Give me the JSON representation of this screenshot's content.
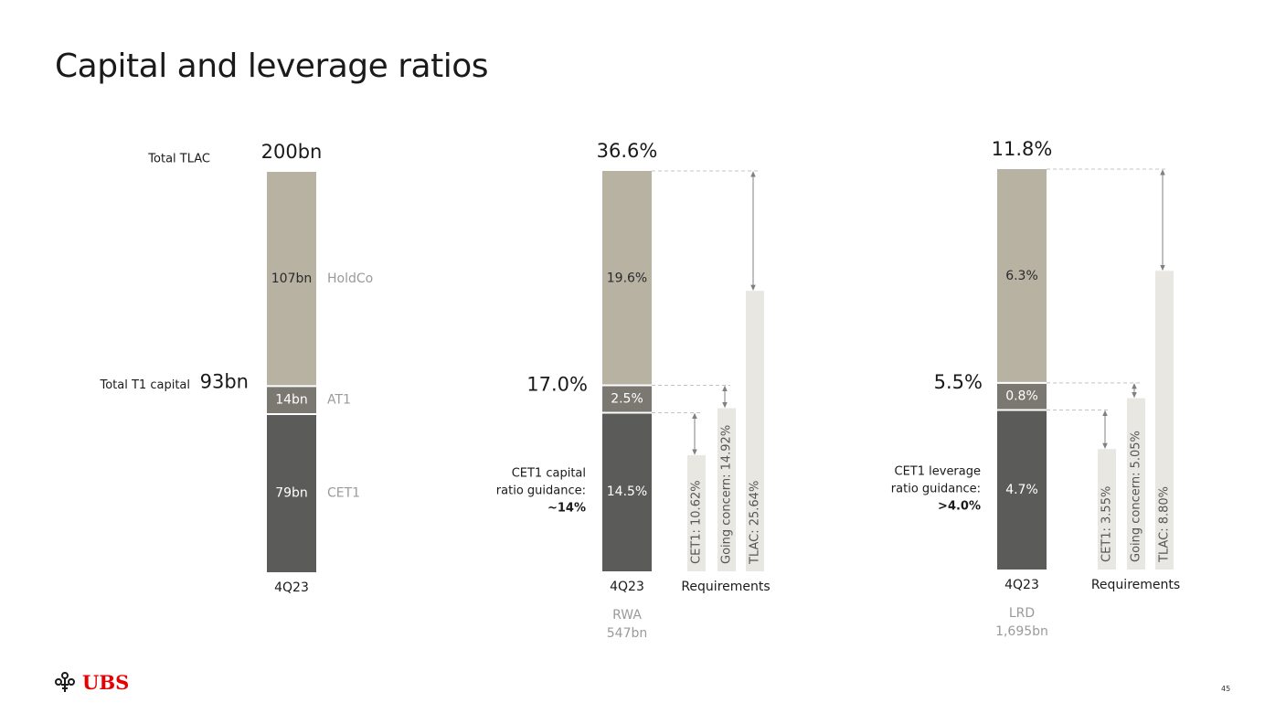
{
  "title": "Capital and leverage ratios",
  "page_number": "45",
  "logo_text": "UBS",
  "colors": {
    "holdco": "#b8b2a3",
    "at1": "#7b7771",
    "cet1": "#5b5c5a",
    "requirement": "#e9e7e2",
    "line": "#c4c4c4",
    "muted": "#9a9a9a",
    "brand": "#e60000"
  },
  "chart_data": [
    {
      "type": "bar",
      "title": "",
      "category": "4Q23",
      "top_label": "200bn",
      "top_side_label": "Total TLAC",
      "tier1_label": "93bn",
      "tier1_side_label": "Total T1 capital",
      "segments": [
        {
          "name": "CET1",
          "value": 79,
          "label": "79bn"
        },
        {
          "name": "AT1",
          "value": 14,
          "label": "14bn"
        },
        {
          "name": "HoldCo",
          "value": 107,
          "label": "107bn"
        }
      ]
    },
    {
      "type": "bar",
      "title": "",
      "category": "4Q23",
      "denominator_label": "RWA",
      "denominator_value": "547bn",
      "top_label": "36.6%",
      "tier1_label": "17.0%",
      "guidance": {
        "line1": "CET1 capital",
        "line2": "ratio guidance:",
        "value": "~14%"
      },
      "segments": [
        {
          "name": "CET1",
          "value": 14.5,
          "label": "14.5%"
        },
        {
          "name": "AT1",
          "value": 2.5,
          "label": "2.5%"
        },
        {
          "name": "HoldCo",
          "value": 19.6,
          "label": "19.6%"
        }
      ],
      "requirements_label": "Requirements",
      "requirements": [
        {
          "name": "CET1",
          "value": 10.62,
          "label": "CET1: 10.62%"
        },
        {
          "name": "Going concern",
          "value": 14.92,
          "label": "Going concern: 14.92%"
        },
        {
          "name": "TLAC",
          "value": 25.64,
          "label": "TLAC: 25.64%"
        }
      ]
    },
    {
      "type": "bar",
      "title": "",
      "category": "4Q23",
      "denominator_label": "LRD",
      "denominator_value": "1,695bn",
      "top_label": "11.8%",
      "tier1_label": "5.5%",
      "guidance": {
        "line1": "CET1 leverage",
        "line2": "ratio guidance:",
        "value": ">4.0%"
      },
      "segments": [
        {
          "name": "CET1",
          "value": 4.7,
          "label": "4.7%"
        },
        {
          "name": "AT1",
          "value": 0.8,
          "label": "0.8%"
        },
        {
          "name": "HoldCo",
          "value": 6.3,
          "label": "6.3%"
        }
      ],
      "requirements_label": "Requirements",
      "requirements": [
        {
          "name": "CET1",
          "value": 3.55,
          "label": "CET1: 3.55%"
        },
        {
          "name": "Going concern",
          "value": 5.05,
          "label": "Going concern: 5.05%"
        },
        {
          "name": "TLAC",
          "value": 8.8,
          "label": "TLAC: 8.80%"
        }
      ]
    }
  ]
}
